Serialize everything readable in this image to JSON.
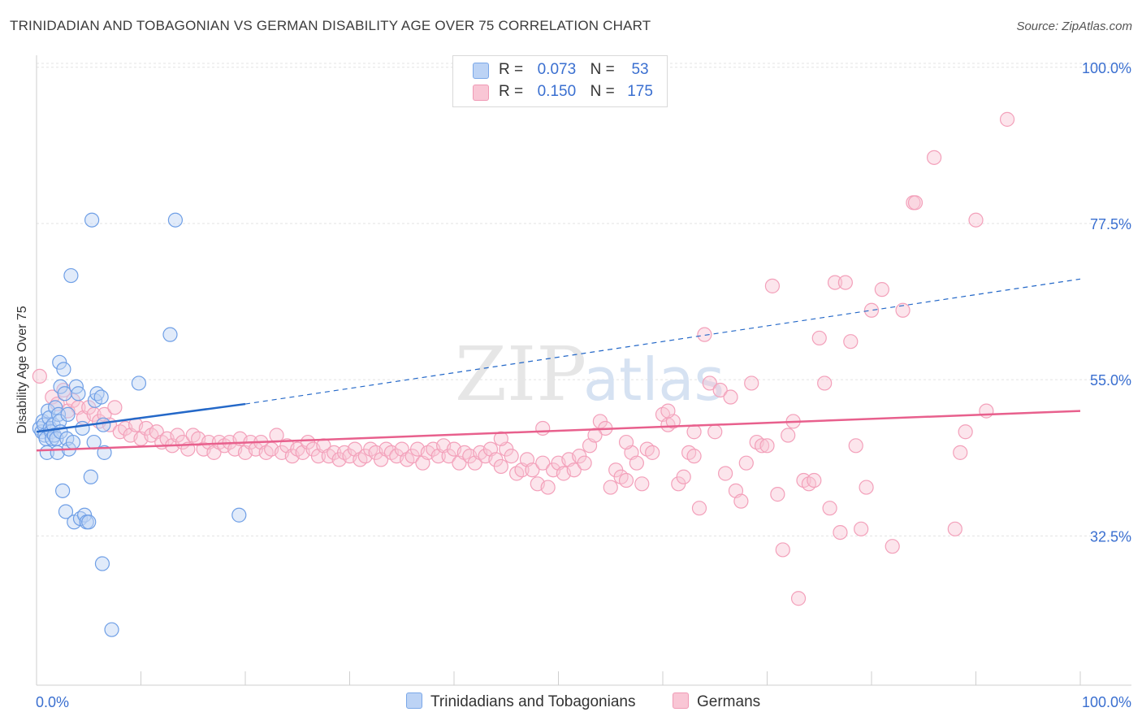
{
  "title": "TRINIDADIAN AND TOBAGONIAN VS GERMAN DISABILITY AGE OVER 75 CORRELATION CHART",
  "source": "Source: ZipAtlas.com",
  "watermark": {
    "zip": "ZIP",
    "atlas": "atlas"
  },
  "legend": {
    "r_label": "R =",
    "n_label": "N =",
    "rows": [
      {
        "r": "0.073",
        "n": "53",
        "color": "#7aa7e8"
      },
      {
        "r": "0.150",
        "n": "175",
        "color": "#f09ab5"
      }
    ]
  },
  "chart_data": {
    "type": "scatter",
    "title": "TRINIDADIAN AND TOBAGONIAN VS GERMAN DISABILITY AGE OVER 75 CORRELATION CHART",
    "ylabel": "Disability Age Over 75",
    "xlabel": "",
    "x_tick_labels": [
      "0.0%",
      "100.0%"
    ],
    "y_tick_labels": [
      "100.0%",
      "77.5%",
      "55.0%",
      "32.5%"
    ],
    "y_ticks": [
      100,
      77.5,
      55,
      32.5
    ],
    "xlim": [
      0,
      100
    ],
    "ylim": [
      11,
      101.5
    ],
    "grid": true,
    "series": [
      {
        "name": "Trinidadians and Tobagonians",
        "color": "#6f9fe6",
        "line_color": "#2468c8",
        "trend": {
          "x0": 0,
          "y0": 47.5,
          "x1": 20,
          "y1": 51.5,
          "dashed_to_x": 100,
          "dashed_to_y": 69.5
        },
        "points": [
          [
            0.3,
            48
          ],
          [
            0.5,
            47.5
          ],
          [
            0.6,
            49
          ],
          [
            0.7,
            48.5
          ],
          [
            0.8,
            47
          ],
          [
            0.9,
            46.5
          ],
          [
            1.0,
            44.5
          ],
          [
            1.1,
            50.5
          ],
          [
            1.2,
            49.5
          ],
          [
            1.3,
            48
          ],
          [
            1.4,
            47.5
          ],
          [
            1.5,
            46.5
          ],
          [
            1.6,
            48.5
          ],
          [
            1.7,
            47
          ],
          [
            1.8,
            51
          ],
          [
            1.9,
            46.5
          ],
          [
            2.0,
            44.5
          ],
          [
            2.1,
            50
          ],
          [
            2.2,
            49
          ],
          [
            2.3,
            47.5
          ],
          [
            2.2,
            57.5
          ],
          [
            2.3,
            54
          ],
          [
            2.5,
            39
          ],
          [
            2.6,
            56.5
          ],
          [
            2.7,
            53
          ],
          [
            2.8,
            36
          ],
          [
            2.9,
            46.5
          ],
          [
            3.0,
            50
          ],
          [
            3.1,
            45
          ],
          [
            3.3,
            70
          ],
          [
            3.5,
            46
          ],
          [
            3.6,
            34.5
          ],
          [
            3.8,
            54
          ],
          [
            4.0,
            53
          ],
          [
            4.2,
            35
          ],
          [
            4.4,
            48
          ],
          [
            4.6,
            35.5
          ],
          [
            4.8,
            34.5
          ],
          [
            5.0,
            34.5
          ],
          [
            5.2,
            41
          ],
          [
            5.3,
            78
          ],
          [
            5.5,
            46
          ],
          [
            5.6,
            52
          ],
          [
            5.8,
            53
          ],
          [
            6.3,
            28.5
          ],
          [
            6.5,
            44.5
          ],
          [
            6.4,
            48.5
          ],
          [
            7.2,
            19
          ],
          [
            9.8,
            54.5
          ],
          [
            12.8,
            61.5
          ],
          [
            13.3,
            78
          ],
          [
            19.4,
            35.5
          ],
          [
            6.2,
            52.5
          ]
        ]
      },
      {
        "name": "Germans",
        "color": "#f3a0ba",
        "line_color": "#e8608d",
        "trend": {
          "x0": 0,
          "y0": 44.8,
          "x1": 100,
          "y1": 50.5
        },
        "points": [
          [
            0.3,
            55.5
          ],
          [
            1.5,
            52.5
          ],
          [
            2.0,
            51.5
          ],
          [
            2.6,
            53.5
          ],
          [
            3.0,
            50.5
          ],
          [
            3.5,
            52
          ],
          [
            4.0,
            51
          ],
          [
            4.5,
            49.5
          ],
          [
            5.0,
            51
          ],
          [
            5.5,
            50
          ],
          [
            6.0,
            49
          ],
          [
            6.5,
            50
          ],
          [
            7.0,
            48.5
          ],
          [
            7.5,
            51
          ],
          [
            8.0,
            47.5
          ],
          [
            8.5,
            48
          ],
          [
            9.0,
            47
          ],
          [
            9.5,
            48.5
          ],
          [
            10.0,
            46.5
          ],
          [
            10.5,
            48
          ],
          [
            11.0,
            47
          ],
          [
            11.5,
            47.5
          ],
          [
            12.0,
            46
          ],
          [
            12.5,
            46.5
          ],
          [
            13.0,
            45.5
          ],
          [
            13.5,
            47
          ],
          [
            14.0,
            46
          ],
          [
            14.5,
            45
          ],
          [
            15.0,
            47
          ],
          [
            15.5,
            46.5
          ],
          [
            16.0,
            45
          ],
          [
            16.5,
            46
          ],
          [
            17.0,
            44.5
          ],
          [
            17.5,
            46
          ],
          [
            18.0,
            45.5
          ],
          [
            18.5,
            46
          ],
          [
            19.0,
            45
          ],
          [
            19.5,
            46.5
          ],
          [
            20.0,
            44.5
          ],
          [
            20.5,
            46
          ],
          [
            21.0,
            45
          ],
          [
            21.5,
            46
          ],
          [
            22.0,
            44.5
          ],
          [
            22.5,
            45
          ],
          [
            23.0,
            47
          ],
          [
            23.5,
            44.5
          ],
          [
            24.0,
            45.5
          ],
          [
            24.5,
            44
          ],
          [
            25.0,
            45
          ],
          [
            25.5,
            44.5
          ],
          [
            26.0,
            46
          ],
          [
            26.5,
            45
          ],
          [
            27.0,
            44
          ],
          [
            27.5,
            45.5
          ],
          [
            28.0,
            44
          ],
          [
            28.5,
            44.5
          ],
          [
            29.0,
            43.5
          ],
          [
            29.5,
            44.5
          ],
          [
            30.0,
            44
          ],
          [
            30.5,
            45
          ],
          [
            31.0,
            43.5
          ],
          [
            31.5,
            44
          ],
          [
            32.0,
            45
          ],
          [
            32.5,
            44.5
          ],
          [
            33.0,
            43.5
          ],
          [
            33.5,
            45
          ],
          [
            34.0,
            44.5
          ],
          [
            34.5,
            44
          ],
          [
            35.0,
            45
          ],
          [
            35.5,
            43.5
          ],
          [
            36.0,
            44
          ],
          [
            36.5,
            45
          ],
          [
            37.0,
            43
          ],
          [
            37.5,
            44.5
          ],
          [
            38.0,
            45
          ],
          [
            38.5,
            44
          ],
          [
            39.0,
            45.5
          ],
          [
            39.5,
            44
          ],
          [
            40.0,
            45
          ],
          [
            40.5,
            43
          ],
          [
            41.0,
            44.5
          ],
          [
            41.5,
            44
          ],
          [
            42.0,
            43
          ],
          [
            42.5,
            44.5
          ],
          [
            43.0,
            44
          ],
          [
            43.5,
            45
          ],
          [
            44.0,
            43.5
          ],
          [
            44.5,
            42.5
          ],
          [
            45.0,
            45
          ],
          [
            45.5,
            44
          ],
          [
            46.0,
            41.5
          ],
          [
            46.5,
            42
          ],
          [
            47.0,
            43.5
          ],
          [
            47.5,
            42
          ],
          [
            48.0,
            40
          ],
          [
            48.5,
            43
          ],
          [
            49.0,
            39.5
          ],
          [
            49.5,
            42
          ],
          [
            50.0,
            43
          ],
          [
            50.5,
            41.5
          ],
          [
            51.0,
            43.5
          ],
          [
            51.5,
            42
          ],
          [
            52.0,
            44
          ],
          [
            52.5,
            43
          ],
          [
            53.0,
            45.5
          ],
          [
            54.0,
            49
          ],
          [
            54.5,
            48
          ],
          [
            55.0,
            39.5
          ],
          [
            55.5,
            42
          ],
          [
            56.0,
            41
          ],
          [
            56.5,
            40.5
          ],
          [
            57.0,
            44.5
          ],
          [
            57.5,
            43
          ],
          [
            58.0,
            40
          ],
          [
            58.5,
            45
          ],
          [
            59.0,
            44.5
          ],
          [
            60.0,
            50
          ],
          [
            60.5,
            48.5
          ],
          [
            61.0,
            49
          ],
          [
            61.5,
            40
          ],
          [
            62.0,
            41
          ],
          [
            62.5,
            44.5
          ],
          [
            63.0,
            44
          ],
          [
            63.5,
            36.5
          ],
          [
            64.0,
            61.5
          ],
          [
            64.5,
            54.5
          ],
          [
            65.0,
            47.5
          ],
          [
            65.5,
            53.5
          ],
          [
            66.0,
            41.5
          ],
          [
            66.5,
            52.5
          ],
          [
            67.0,
            39
          ],
          [
            67.5,
            37.5
          ],
          [
            68.0,
            43
          ],
          [
            68.5,
            54.5
          ],
          [
            69.0,
            46
          ],
          [
            69.5,
            45.5
          ],
          [
            70.0,
            45.5
          ],
          [
            70.5,
            68.5
          ],
          [
            71.0,
            38.5
          ],
          [
            71.5,
            30.5
          ],
          [
            72.0,
            47
          ],
          [
            72.5,
            49
          ],
          [
            73.0,
            23.5
          ],
          [
            73.5,
            40.5
          ],
          [
            74.0,
            40
          ],
          [
            74.5,
            40.5
          ],
          [
            75.0,
            61
          ],
          [
            75.5,
            54.5
          ],
          [
            76.0,
            36.5
          ],
          [
            76.5,
            69
          ],
          [
            77.0,
            33
          ],
          [
            77.5,
            69
          ],
          [
            78.0,
            60.5
          ],
          [
            78.5,
            45.5
          ],
          [
            79.0,
            33.5
          ],
          [
            79.5,
            39.5
          ],
          [
            80.0,
            65
          ],
          [
            81.0,
            68
          ],
          [
            82.0,
            31
          ],
          [
            83.0,
            65
          ],
          [
            84.0,
            80.5
          ],
          [
            84.2,
            80.5
          ],
          [
            86.0,
            87
          ],
          [
            88.0,
            33.5
          ],
          [
            88.5,
            44.5
          ],
          [
            89.0,
            47.5
          ],
          [
            90.0,
            78
          ],
          [
            91.0,
            50.5
          ],
          [
            93.0,
            92.5
          ],
          [
            60.5,
            50.5
          ],
          [
            63.0,
            47.5
          ],
          [
            56.5,
            46
          ],
          [
            53.5,
            47
          ],
          [
            48.5,
            48
          ],
          [
            44.5,
            46.5
          ]
        ]
      }
    ]
  }
}
